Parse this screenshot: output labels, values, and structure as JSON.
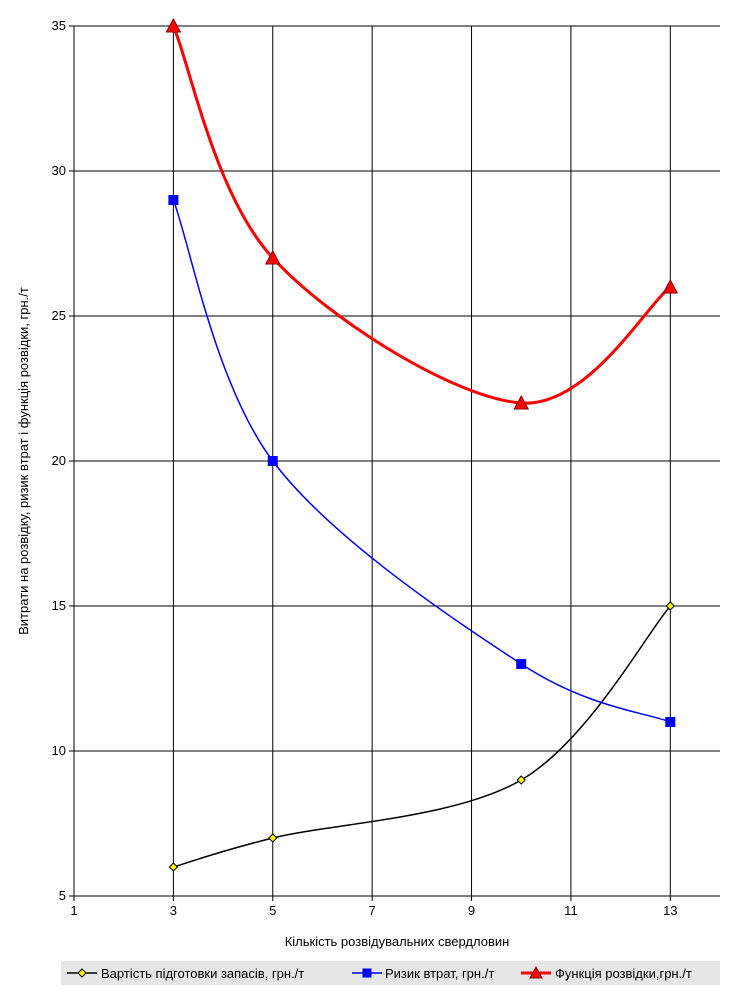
{
  "chart_data": {
    "type": "line",
    "xlabel": "Кількість розвідувальних свердловин",
    "ylabel": "Витрати на розвідку, ризик втрат і функція розвідки, грн./т",
    "xlim": [
      1,
      14
    ],
    "ylim": [
      5,
      35
    ],
    "xticks": [
      1,
      3,
      5,
      7,
      9,
      11,
      13
    ],
    "yticks": [
      5,
      10,
      15,
      20,
      25,
      30,
      35
    ],
    "grid": true,
    "legend_position": "bottom",
    "series": [
      {
        "name": "Вартість підготовки запасів, грн./т",
        "color": "#000000",
        "marker": "diamond",
        "marker_color": "#000000",
        "marker_fill": "#ffff00",
        "x": [
          3,
          5,
          10,
          13
        ],
        "values": [
          6,
          7,
          9,
          15
        ]
      },
      {
        "name": "Ризик втрат, грн./т",
        "color": "#0000ff",
        "marker": "square",
        "marker_color": "#0000ff",
        "marker_fill": "#0000ff",
        "x": [
          3,
          5,
          10,
          13
        ],
        "values": [
          29,
          20,
          13,
          11
        ]
      },
      {
        "name": "Функція розвідки,грн./т",
        "color": "#ff0000",
        "marker": "triangle",
        "marker_color": "#ff0000",
        "marker_fill": "#ff0000",
        "x": [
          3,
          5,
          10,
          13
        ],
        "values": [
          35,
          27,
          22,
          26
        ]
      }
    ]
  }
}
